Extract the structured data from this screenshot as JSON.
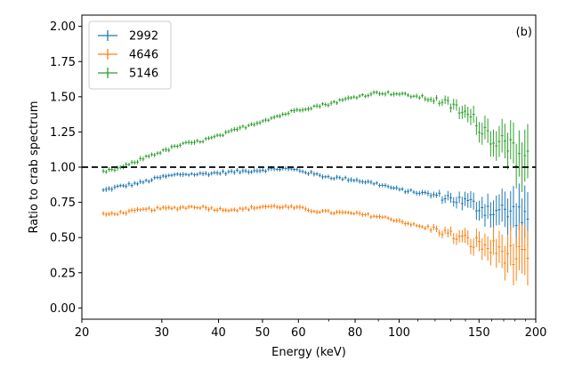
{
  "chart_data": {
    "type": "scatter",
    "style": "errorbar",
    "panel_label": "(b)",
    "xlabel": "Energy (keV)",
    "ylabel": "Ratio to crab spectrum",
    "xscale": "log",
    "xlim": [
      20,
      200
    ],
    "ylim": [
      -0.08,
      2.08
    ],
    "xticks": [
      20,
      30,
      40,
      50,
      60,
      80,
      100,
      150,
      200
    ],
    "xtick_labels": [
      "20",
      "30",
      "40",
      "50",
      "60",
      "80",
      "100",
      "150",
      "200"
    ],
    "yticks": [
      0.0,
      0.25,
      0.5,
      0.75,
      1.0,
      1.25,
      1.5,
      1.75,
      2.0
    ],
    "ytick_labels": [
      "0.00",
      "0.25",
      "0.50",
      "0.75",
      "1.00",
      "1.25",
      "1.50",
      "1.75",
      "2.00"
    ],
    "reference_line": {
      "y": 1.0,
      "style": "dashed",
      "color": "#000000"
    },
    "legend": {
      "location": "top-left"
    },
    "series": [
      {
        "name": "2992",
        "color": "#1f77b4",
        "anchors": [
          [
            22,
            0.83
          ],
          [
            24,
            0.86
          ],
          [
            27,
            0.89
          ],
          [
            30,
            0.93
          ],
          [
            33,
            0.95
          ],
          [
            36,
            0.95
          ],
          [
            40,
            0.96
          ],
          [
            45,
            0.97
          ],
          [
            50,
            0.98
          ],
          [
            55,
            0.99
          ],
          [
            60,
            0.98
          ],
          [
            65,
            0.95
          ],
          [
            70,
            0.93
          ],
          [
            80,
            0.91
          ],
          [
            90,
            0.88
          ],
          [
            100,
            0.84
          ],
          [
            110,
            0.82
          ],
          [
            120,
            0.8
          ],
          [
            130,
            0.78
          ],
          [
            140,
            0.75
          ],
          [
            150,
            0.72
          ],
          [
            160,
            0.7
          ],
          [
            170,
            0.68
          ],
          [
            180,
            0.67
          ],
          [
            190,
            0.65
          ]
        ]
      },
      {
        "name": "4646",
        "color": "#ff7f0e",
        "anchors": [
          [
            22,
            0.66
          ],
          [
            25,
            0.68
          ],
          [
            28,
            0.7
          ],
          [
            32,
            0.71
          ],
          [
            36,
            0.72
          ],
          [
            40,
            0.7
          ],
          [
            45,
            0.7
          ],
          [
            50,
            0.72
          ],
          [
            55,
            0.72
          ],
          [
            60,
            0.71
          ],
          [
            65,
            0.69
          ],
          [
            70,
            0.68
          ],
          [
            80,
            0.67
          ],
          [
            90,
            0.65
          ],
          [
            100,
            0.62
          ],
          [
            110,
            0.58
          ],
          [
            120,
            0.56
          ],
          [
            130,
            0.52
          ],
          [
            140,
            0.48
          ],
          [
            150,
            0.45
          ],
          [
            160,
            0.42
          ],
          [
            170,
            0.4
          ],
          [
            180,
            0.36
          ],
          [
            190,
            0.32
          ]
        ]
      },
      {
        "name": "5146",
        "color": "#2ca02c",
        "anchors": [
          [
            22,
            0.96
          ],
          [
            24,
            0.99
          ],
          [
            26,
            1.03
          ],
          [
            28,
            1.08
          ],
          [
            30,
            1.11
          ],
          [
            33,
            1.16
          ],
          [
            36,
            1.18
          ],
          [
            40,
            1.22
          ],
          [
            45,
            1.28
          ],
          [
            50,
            1.33
          ],
          [
            55,
            1.37
          ],
          [
            60,
            1.41
          ],
          [
            65,
            1.43
          ],
          [
            70,
            1.45
          ],
          [
            80,
            1.5
          ],
          [
            90,
            1.53
          ],
          [
            100,
            1.52
          ],
          [
            110,
            1.5
          ],
          [
            120,
            1.48
          ],
          [
            130,
            1.44
          ],
          [
            140,
            1.38
          ],
          [
            150,
            1.3
          ],
          [
            160,
            1.22
          ],
          [
            170,
            1.18
          ],
          [
            180,
            1.1
          ],
          [
            190,
            1.02
          ]
        ]
      }
    ]
  }
}
